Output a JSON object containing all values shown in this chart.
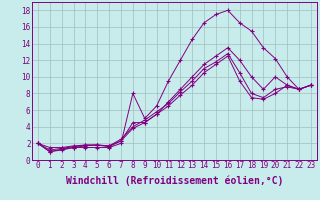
{
  "xlabel": "Windchill (Refroidissement éolien,°C)",
  "bg_color": "#c8ecec",
  "line_color": "#800080",
  "grid_color": "#a0bebe",
  "lines": [
    [
      2,
      1,
      1.2,
      1.5,
      1.5,
      1.5,
      1.5,
      2.0,
      8.0,
      5.0,
      6.5,
      9.5,
      12.0,
      14.5,
      16.5,
      17.5,
      18.0,
      16.5,
      15.5,
      13.5,
      12.2,
      10.0,
      8.5,
      9.0
    ],
    [
      2,
      1.0,
      1.3,
      1.5,
      1.7,
      1.8,
      1.6,
      2.3,
      4.5,
      4.5,
      5.5,
      7.0,
      8.5,
      10.0,
      11.5,
      12.5,
      13.5,
      12.0,
      10.0,
      8.5,
      10.0,
      9.0,
      8.5,
      9.0
    ],
    [
      2,
      1.2,
      1.4,
      1.6,
      1.8,
      1.8,
      1.7,
      2.5,
      4.0,
      4.8,
      5.8,
      6.8,
      8.2,
      9.5,
      11.0,
      11.8,
      12.8,
      10.5,
      8.0,
      7.5,
      8.5,
      8.8,
      8.5,
      9.0
    ],
    [
      2,
      1.5,
      1.5,
      1.7,
      1.8,
      1.8,
      1.7,
      2.3,
      3.8,
      4.5,
      5.5,
      6.5,
      7.8,
      9.0,
      10.5,
      11.5,
      12.5,
      9.5,
      7.5,
      7.3,
      8.0,
      9.0,
      8.5,
      9.0
    ]
  ],
  "xlim": [
    -0.5,
    23.5
  ],
  "ylim": [
    0,
    19
  ],
  "xticks": [
    0,
    1,
    2,
    3,
    4,
    5,
    6,
    7,
    8,
    9,
    10,
    11,
    12,
    13,
    14,
    15,
    16,
    17,
    18,
    19,
    20,
    21,
    22,
    23
  ],
  "yticks": [
    0,
    2,
    4,
    6,
    8,
    10,
    12,
    14,
    16,
    18
  ],
  "tick_fontsize": 5.5,
  "xlabel_fontsize": 7.0,
  "marker": "+"
}
